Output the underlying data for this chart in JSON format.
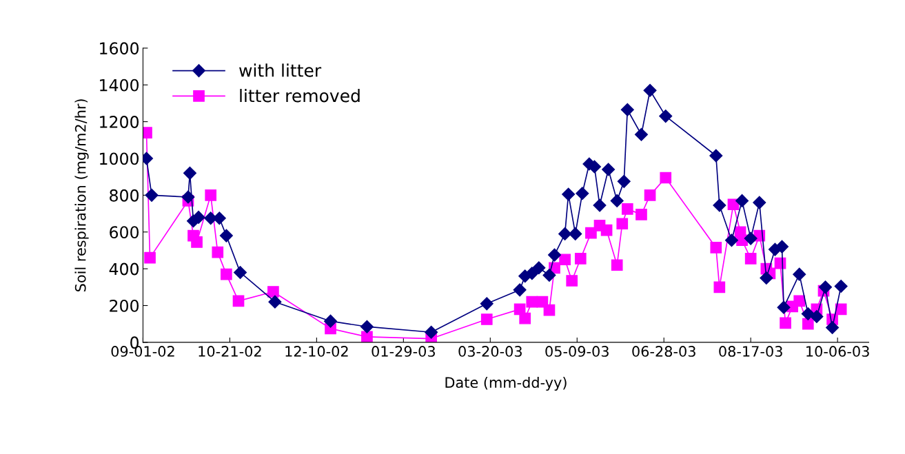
{
  "chart_data": {
    "type": "line",
    "xlabel": "Date (mm-dd-yy)",
    "ylabel": "Soil respiration (mg/m2/hr)",
    "xlim": [
      "2002-09-01",
      "2003-10-24"
    ],
    "xticks": [
      {
        "value": "2002-09-01",
        "label": "09-01-02"
      },
      {
        "value": "2002-10-21",
        "label": "10-21-02"
      },
      {
        "value": "2002-12-10",
        "label": "12-10-02"
      },
      {
        "value": "2003-01-29",
        "label": "01-29-03"
      },
      {
        "value": "2003-03-20",
        "label": "03-20-03"
      },
      {
        "value": "2003-05-09",
        "label": "05-09-03"
      },
      {
        "value": "2003-06-28",
        "label": "06-28-03"
      },
      {
        "value": "2003-08-17",
        "label": "08-17-03"
      },
      {
        "value": "2003-10-06",
        "label": "10-06-03"
      }
    ],
    "ylim": [
      0,
      1600
    ],
    "yticks": [
      0,
      200,
      400,
      600,
      800,
      1000,
      1200,
      1400,
      1600
    ],
    "grid": false,
    "legend": "top left",
    "line_style": "solid",
    "series": [
      {
        "name": "with litter",
        "color": "#000080",
        "marker": "diamond",
        "x": [
          "2002-09-03",
          "2002-09-06",
          "2002-09-27",
          "2002-09-28",
          "2002-09-30",
          "2002-10-03",
          "2002-10-10",
          "2002-10-15",
          "2002-10-19",
          "2002-10-27",
          "2002-11-16",
          "2002-12-18",
          "2003-01-08",
          "2003-02-14",
          "2003-03-18",
          "2003-04-06",
          "2003-04-09",
          "2003-04-13",
          "2003-04-17",
          "2003-04-23",
          "2003-04-26",
          "2003-05-02",
          "2003-05-04",
          "2003-05-08",
          "2003-05-12",
          "2003-05-16",
          "2003-05-19",
          "2003-05-22",
          "2003-05-27",
          "2003-06-01",
          "2003-06-05",
          "2003-06-07",
          "2003-06-15",
          "2003-06-20",
          "2003-06-29",
          "2003-07-28",
          "2003-07-30",
          "2003-08-06",
          "2003-08-12",
          "2003-08-17",
          "2003-08-22",
          "2003-08-26",
          "2003-08-31",
          "2003-09-04",
          "2003-09-05",
          "2003-09-14",
          "2003-09-19",
          "2003-09-24",
          "2003-09-29",
          "2003-10-03",
          "2003-10-08"
        ],
        "values": [
          1000,
          800,
          790,
          920,
          660,
          680,
          675,
          675,
          580,
          380,
          220,
          115,
          85,
          55,
          210,
          285,
          360,
          375,
          405,
          365,
          475,
          590,
          805,
          590,
          810,
          970,
          955,
          745,
          940,
          770,
          875,
          1265,
          1130,
          1370,
          1230,
          1015,
          745,
          555,
          770,
          565,
          760,
          350,
          505,
          520,
          190,
          370,
          155,
          140,
          300,
          80,
          305
        ]
      },
      {
        "name": "litter removed",
        "color": "#ff00ff",
        "marker": "square",
        "x": [
          "2002-09-03",
          "2002-09-05",
          "2002-09-27",
          "2002-09-30",
          "2002-10-02",
          "2002-10-10",
          "2002-10-14",
          "2002-10-19",
          "2002-10-26",
          "2002-11-15",
          "2002-12-18",
          "2003-01-08",
          "2003-02-14",
          "2003-03-18",
          "2003-04-06",
          "2003-04-09",
          "2003-04-13",
          "2003-04-19",
          "2003-04-23",
          "2003-04-26",
          "2003-05-02",
          "2003-05-06",
          "2003-05-11",
          "2003-05-17",
          "2003-05-22",
          "2003-05-26",
          "2003-06-01",
          "2003-06-04",
          "2003-06-07",
          "2003-06-15",
          "2003-06-20",
          "2003-06-29",
          "2003-07-28",
          "2003-07-30",
          "2003-08-07",
          "2003-08-11",
          "2003-08-12",
          "2003-08-17",
          "2003-08-22",
          "2003-08-26",
          "2003-08-28",
          "2003-09-03",
          "2003-09-06",
          "2003-09-10",
          "2003-09-14",
          "2003-09-19",
          "2003-09-24",
          "2003-09-28",
          "2003-10-03",
          "2003-10-08"
        ],
        "values": [
          1140,
          460,
          770,
          580,
          545,
          800,
          490,
          370,
          225,
          275,
          75,
          30,
          20,
          125,
          180,
          130,
          220,
          220,
          175,
          405,
          450,
          335,
          455,
          595,
          635,
          610,
          420,
          645,
          725,
          695,
          800,
          895,
          515,
          300,
          750,
          600,
          555,
          455,
          580,
          400,
          375,
          430,
          105,
          195,
          225,
          100,
          180,
          280,
          125,
          180
        ]
      }
    ]
  }
}
